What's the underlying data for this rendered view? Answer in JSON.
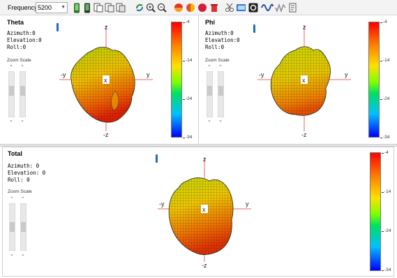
{
  "toolbar": {
    "frequency_label": "Frequency:",
    "frequency_value": "5200",
    "icons": [
      "phone-green-icon",
      "phone-dark-icon",
      "copy-view-icon",
      "copy-view-2-icon",
      "copy-view-3-icon",
      "rotate-icon",
      "zoom-in-icon",
      "zoom-out-icon",
      "color-sphere-icon",
      "sphere-half-icon",
      "red-sphere-icon",
      "trash-icon",
      "cut-plot-icon",
      "export-image-icon",
      "record-icon",
      "wave-icon",
      "signal-icon",
      "notes-icon"
    ]
  },
  "panels": {
    "theta": {
      "title": "Theta",
      "azimuth": "Azimuth:0",
      "elevation": "Elevation:0",
      "roll": "Roll:0",
      "zoom_label": "Zoom Scale",
      "colorbar_ticks": [
        "-4",
        "-14",
        "-24",
        "-34"
      ],
      "axes": {
        "z": "z",
        "neg_z": "-z",
        "y": "y",
        "neg_y": "-y",
        "x": "x"
      }
    },
    "phi": {
      "title": "Phi",
      "azimuth": "Azimuth:0",
      "elevation": "Elevation:0",
      "roll": "Roll:0",
      "zoom_label": "Zoom Scale",
      "colorbar_ticks": [
        "-4",
        "-14",
        "-24",
        "-34"
      ],
      "axes": {
        "z": "z",
        "neg_z": "-z",
        "y": "y",
        "neg_y": "-y",
        "x": "x"
      }
    },
    "total": {
      "title": "Total",
      "azimuth": "Azimuth: 0",
      "elevation": "Elevation: 0",
      "roll": "Roll: 0",
      "zoom_label": "Zoom Scale",
      "colorbar_ticks": [
        "-4",
        "-14",
        "-24",
        "-34"
      ],
      "axes": {
        "z": "z",
        "neg_z": "-z",
        "y": "y",
        "neg_y": "-y",
        "x": "x"
      }
    }
  }
}
